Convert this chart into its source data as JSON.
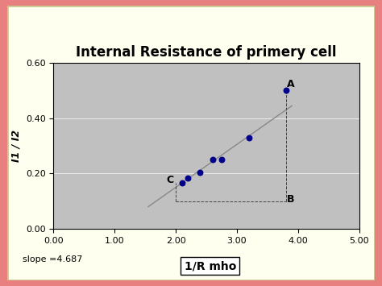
{
  "title": "Internal Resistance of primery cell",
  "ylabel": "I1 / I2",
  "xlabel_box": "1/R mho",
  "slope_text": "slope =4.687",
  "xlim": [
    0.0,
    5.0
  ],
  "ylim": [
    0.0,
    0.6
  ],
  "xticks": [
    0.0,
    1.0,
    2.0,
    3.0,
    4.0,
    5.0
  ],
  "yticks": [
    0.0,
    0.2,
    0.4,
    0.6
  ],
  "data_x": [
    2.1,
    2.2,
    2.4,
    2.6,
    2.75,
    3.2,
    3.8
  ],
  "data_y": [
    0.165,
    0.185,
    0.205,
    0.25,
    0.25,
    0.33,
    0.5
  ],
  "point_color": "#00008B",
  "line_color": "#888888",
  "plot_bg": "#C0C0C0",
  "fig_inner_bg": "#FFFFF0",
  "outer_border_color": "#E88080",
  "inner_border_color": "#C8C890",
  "label_A": [
    "A",
    3.82,
    0.505
  ],
  "label_B": [
    "B",
    3.82,
    0.105
  ],
  "label_C": [
    "C",
    1.97,
    0.175
  ],
  "dashed_line_color": "#444444",
  "trendline_x": [
    1.55,
    3.9
  ],
  "trendline_y": [
    0.08,
    0.445
  ],
  "title_fontsize": 12,
  "axis_fontsize": 9,
  "tick_fontsize": 8,
  "slope_fontsize": 8,
  "xlabel_box_fontsize": 10
}
